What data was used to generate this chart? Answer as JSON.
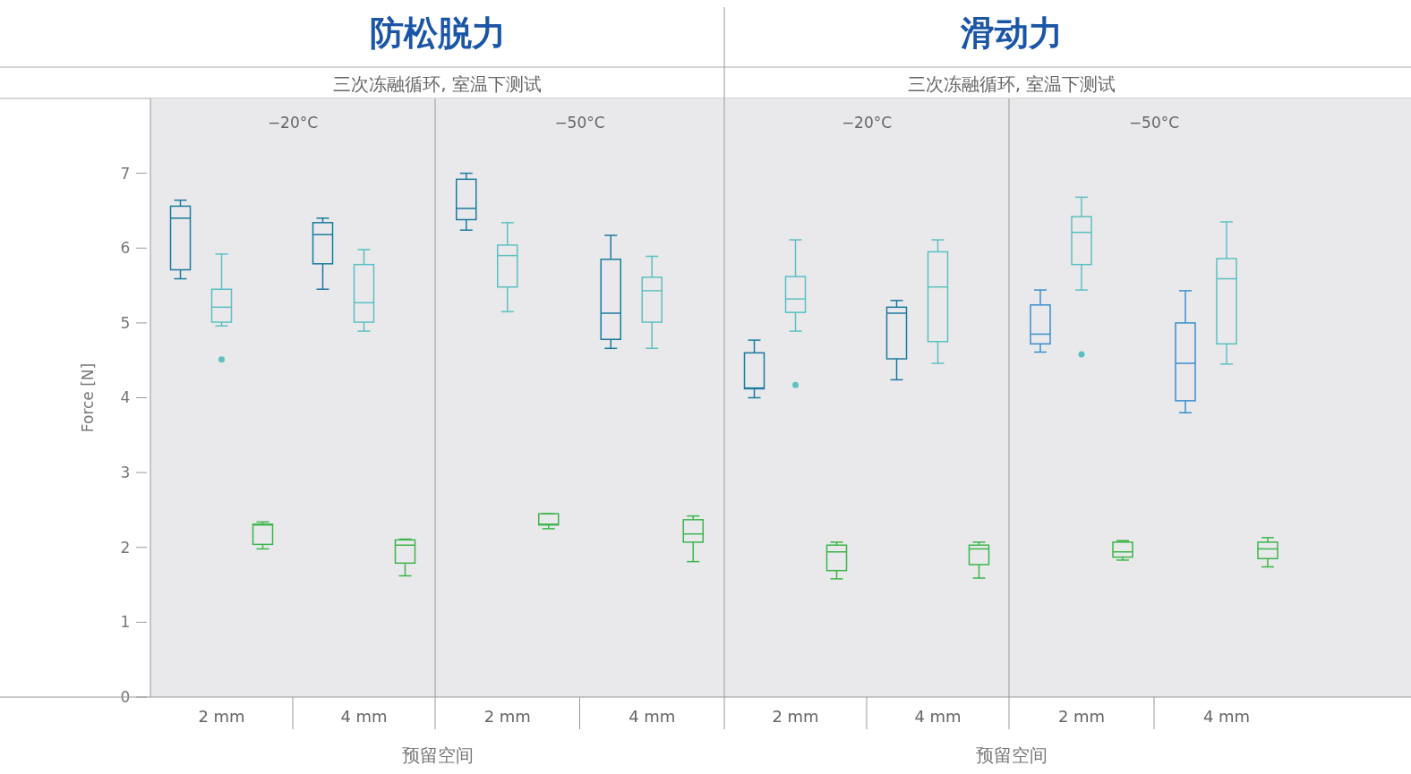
{
  "chart_data": [
    {
      "type": "box",
      "title": "防松脱力",
      "subtitle": "三次冻融循环, 室温下测试",
      "xlabel": "预留空间",
      "ylabel": "Force [N]",
      "annotations": [
        "−20°C"
      ],
      "categories": [
        "2 mm",
        "4 mm"
      ],
      "ylim": [
        0,
        8
      ],
      "yticks": [
        0,
        1,
        2,
        3,
        4,
        5,
        6,
        7
      ],
      "series": [
        {
          "color": "#1c7a9e",
          "boxes": [
            {
              "low": 5.59,
              "q1": 5.71,
              "median": 6.4,
              "q3": 6.56,
              "high": 6.64
            },
            {
              "low": 5.45,
              "q1": 5.79,
              "median": 6.18,
              "q3": 6.34,
              "high": 6.4
            }
          ]
        },
        {
          "color": "#5cc0c0",
          "boxes": [
            {
              "low": 4.96,
              "q1": 5.01,
              "median": 5.21,
              "q3": 5.45,
              "high": 5.92,
              "outliers": [
                4.51
              ]
            },
            {
              "low": 4.89,
              "q1": 5.01,
              "median": 5.27,
              "q3": 5.78,
              "high": 5.98
            }
          ]
        },
        {
          "color": "#3db54a",
          "boxes": [
            {
              "low": 1.98,
              "q1": 2.04,
              "median": 2.3,
              "q3": 2.31,
              "high": 2.34
            },
            {
              "low": 1.62,
              "q1": 1.79,
              "median": 2.03,
              "q3": 2.1,
              "high": 2.11
            }
          ]
        }
      ]
    },
    {
      "type": "box",
      "annotations": [
        "−50°C"
      ],
      "categories": [
        "2 mm",
        "4 mm"
      ],
      "ylim": [
        0,
        8
      ],
      "tick_labels": "x",
      "series": [
        {
          "color": "#1c7a9e",
          "boxes": [
            {
              "low": 6.24,
              "q1": 6.38,
              "median": 6.53,
              "q3": 6.92,
              "high": 7.0
            },
            {
              "low": 4.66,
              "q1": 4.78,
              "median": 5.13,
              "q3": 5.85,
              "high": 6.17
            }
          ]
        },
        {
          "color": "#5cc0c0",
          "boxes": [
            {
              "low": 5.15,
              "q1": 5.48,
              "median": 5.9,
              "q3": 6.04,
              "high": 6.34
            },
            {
              "low": 4.66,
              "q1": 5.01,
              "median": 5.43,
              "q3": 5.61,
              "high": 5.89
            }
          ]
        },
        {
          "color": "#3db54a",
          "boxes": [
            {
              "low": 2.25,
              "q1": 2.3,
              "median": 2.31,
              "q3": 2.45,
              "high": 2.45
            },
            {
              "low": 1.81,
              "q1": 2.07,
              "median": 2.18,
              "q3": 2.37,
              "high": 2.42
            }
          ]
        }
      ]
    },
    {
      "type": "box",
      "title": "滑动力",
      "subtitle": "三次冻融循环, 室温下测试",
      "xlabel": "预留空间",
      "annotations": [
        "−20°C"
      ],
      "categories": [
        "2 mm",
        "4 mm"
      ],
      "ylim": [
        0,
        8
      ],
      "tick_labels": "x",
      "series": [
        {
          "color": "#1c7a9e",
          "boxes": [
            {
              "low": 4.0,
              "q1": 4.12,
              "median": 4.13,
              "q3": 4.6,
              "high": 4.77
            },
            {
              "low": 4.24,
              "q1": 4.52,
              "median": 5.13,
              "q3": 5.21,
              "high": 5.3
            }
          ]
        },
        {
          "color": "#5cc0c0",
          "boxes": [
            {
              "low": 4.89,
              "q1": 5.14,
              "median": 5.32,
              "q3": 5.62,
              "high": 6.11,
              "outliers": [
                4.17
              ]
            },
            {
              "low": 4.46,
              "q1": 4.75,
              "median": 5.48,
              "q3": 5.95,
              "high": 6.11
            }
          ]
        },
        {
          "color": "#3db54a",
          "boxes": [
            {
              "low": 1.58,
              "q1": 1.69,
              "median": 1.94,
              "q3": 2.03,
              "high": 2.07
            },
            {
              "low": 1.59,
              "q1": 1.77,
              "median": 1.98,
              "q3": 2.03,
              "high": 2.07
            }
          ]
        }
      ]
    },
    {
      "type": "box",
      "annotations": [
        "−50°C"
      ],
      "categories": [
        "2 mm",
        "4 mm"
      ],
      "ylim": [
        0,
        8
      ],
      "tick_labels": "x",
      "series": [
        {
          "color": "#3a8fcc",
          "boxes": [
            {
              "low": 4.61,
              "q1": 4.72,
              "median": 4.85,
              "q3": 5.24,
              "high": 5.44
            },
            {
              "low": 3.8,
              "q1": 3.96,
              "median": 4.46,
              "q3": 5.0,
              "high": 5.43
            }
          ]
        },
        {
          "color": "#5cc0c0",
          "boxes": [
            {
              "low": 5.44,
              "q1": 5.78,
              "median": 6.21,
              "q3": 6.42,
              "high": 6.68,
              "outliers": [
                4.58
              ]
            },
            {
              "low": 4.45,
              "q1": 4.72,
              "median": 5.59,
              "q3": 5.86,
              "high": 6.35
            }
          ]
        },
        {
          "color": "#3db54a",
          "boxes": [
            {
              "low": 1.83,
              "q1": 1.87,
              "median": 1.94,
              "q3": 2.07,
              "high": 2.09
            },
            {
              "low": 1.74,
              "q1": 1.85,
              "median": 1.98,
              "q3": 2.07,
              "high": 2.13
            }
          ]
        }
      ]
    }
  ]
}
